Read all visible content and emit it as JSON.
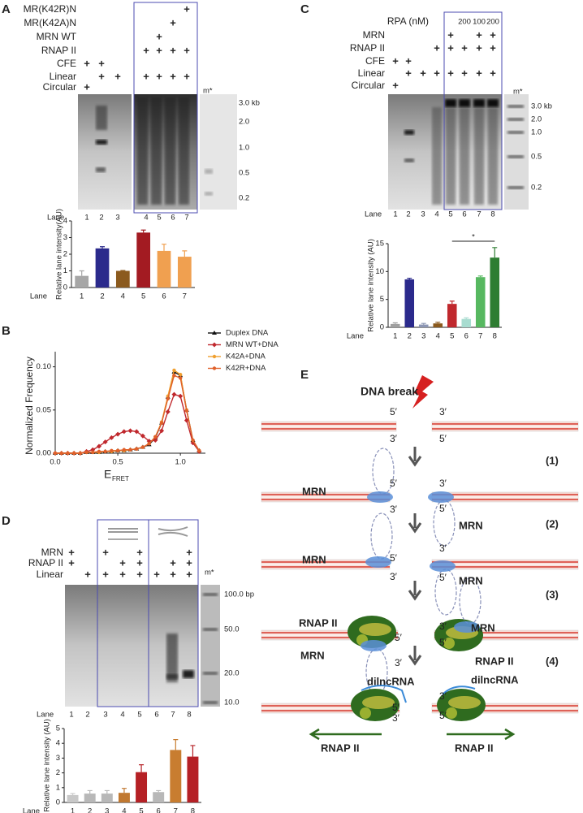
{
  "panels": {
    "a": "A",
    "b": "B",
    "c": "C",
    "d": "D",
    "e": "E"
  },
  "panel_a": {
    "rows": [
      {
        "label": "MR(K42R)N",
        "signs": [
          null,
          null,
          null,
          null,
          null,
          null,
          "+"
        ]
      },
      {
        "label": "MR(K42A)N",
        "signs": [
          null,
          null,
          null,
          null,
          null,
          "+",
          null
        ]
      },
      {
        "label": "MRN WT",
        "signs": [
          null,
          null,
          null,
          null,
          "+",
          null,
          null
        ]
      },
      {
        "label": "RNAP II",
        "signs": [
          null,
          null,
          null,
          "+",
          "+",
          "+",
          "+"
        ]
      },
      {
        "label": "CFE",
        "signs": [
          "+",
          "+",
          null,
          null,
          null,
          null,
          null
        ]
      },
      {
        "label": "Linear",
        "signs": [
          null,
          "+",
          "+",
          "+",
          "+",
          "+",
          "+"
        ]
      },
      {
        "label": "Circular",
        "signs": [
          "+",
          null,
          null,
          null,
          null,
          null,
          null
        ]
      }
    ],
    "marker_lane": "m*",
    "sizes": [
      "3.0 kb",
      "2.0",
      "1.0",
      "0.5",
      "0.2"
    ],
    "lane_label": "Lane",
    "lanes": [
      "1",
      "2",
      "3",
      "4",
      "5",
      "6",
      "7"
    ]
  },
  "panel_c": {
    "rpa_label": "RPA (nM)",
    "rpa": [
      null,
      null,
      null,
      null,
      null,
      "200",
      "100",
      "200"
    ],
    "rows": [
      {
        "label": "MRN",
        "signs": [
          null,
          null,
          null,
          null,
          "+",
          null,
          "+",
          "+"
        ]
      },
      {
        "label": "RNAP II",
        "signs": [
          null,
          null,
          null,
          "+",
          "+",
          "+",
          "+",
          "+"
        ]
      },
      {
        "label": "CFE",
        "signs": [
          "+",
          "+",
          null,
          null,
          null,
          null,
          null,
          null
        ]
      },
      {
        "label": "Linear",
        "signs": [
          null,
          "+",
          "+",
          "+",
          "+",
          "+",
          "+",
          "+"
        ]
      },
      {
        "label": "Circular",
        "signs": [
          "+",
          null,
          null,
          null,
          null,
          null,
          null,
          null
        ]
      }
    ],
    "marker_lane": "m*",
    "sizes": [
      "3.0 kb",
      "2.0",
      "1.0",
      "0.5",
      "0.2"
    ],
    "lane_label": "Lane",
    "lanes": [
      "1",
      "2",
      "3",
      "4",
      "5",
      "6",
      "7",
      "8"
    ]
  },
  "panel_d": {
    "rows": [
      {
        "label": "MRN",
        "signs": [
          "+",
          null,
          "+",
          null,
          "+",
          null,
          null,
          "+"
        ]
      },
      {
        "label": "RNAP II",
        "signs": [
          "+",
          null,
          null,
          "+",
          "+",
          null,
          "+",
          "+"
        ]
      },
      {
        "label": "Linear",
        "signs": [
          null,
          "+",
          "+",
          "+",
          "+",
          "+",
          "+",
          "+"
        ]
      }
    ],
    "marker_lane": "m*",
    "sizes": [
      "100.0 bp",
      "50.0",
      "20.0",
      "10.0"
    ],
    "lane_label": "Lane",
    "lanes": [
      "1",
      "2",
      "3",
      "4",
      "5",
      "6",
      "7",
      "8"
    ]
  },
  "panel_e": {
    "break_label": "DNA break",
    "five": "5′",
    "three": "3′",
    "mrn": "MRN",
    "rnap": "RNAP II",
    "rna": "dilncRNA",
    "steps": [
      "(1)",
      "(2)",
      "(3)",
      "(4)"
    ]
  },
  "chart_data": [
    {
      "type": "bar",
      "y_label": "Relative lane intensity(AU)",
      "x_label": "Lane",
      "categories": [
        "1",
        "2",
        "4",
        "5",
        "6",
        "7"
      ],
      "values": [
        0.7,
        2.35,
        1.0,
        3.3,
        2.2,
        1.85
      ],
      "errors": [
        0.3,
        0.1,
        0.02,
        0.15,
        0.4,
        0.35
      ],
      "colors": [
        "#a6a6a6",
        "#2b2a8c",
        "#8b5a1e",
        "#a31b22",
        "#f0a050",
        "#f0a050"
      ],
      "ylim": [
        0,
        4
      ],
      "yticks": [
        0,
        1,
        2,
        3,
        4
      ]
    },
    {
      "type": "line",
      "y_label": "Normalized Frequency",
      "x_label": "E",
      "x_label_sub": "FRET",
      "x": [
        0,
        0.05,
        0.1,
        0.15,
        0.2,
        0.25,
        0.3,
        0.35,
        0.4,
        0.45,
        0.5,
        0.55,
        0.6,
        0.65,
        0.7,
        0.75,
        0.8,
        0.85,
        0.9,
        0.95,
        1.0,
        1.05,
        1.1,
        1.15
      ],
      "series": [
        {
          "name": "Duplex DNA",
          "color": "#111111",
          "marker": "triangle",
          "values": [
            0,
            0,
            0,
            0,
            0,
            0.001,
            0.001,
            0.001,
            0.002,
            0.002,
            0.003,
            0.003,
            0.004,
            0.005,
            0.007,
            0.01,
            0.018,
            0.035,
            0.065,
            0.094,
            0.09,
            0.05,
            0.015,
            0.003
          ]
        },
        {
          "name": "MRN WT+DNA",
          "color": "#c0282d",
          "marker": "diamond",
          "values": [
            0,
            0,
            0,
            0,
            0,
            0.002,
            0.004,
            0.008,
            0.013,
            0.018,
            0.022,
            0.025,
            0.026,
            0.025,
            0.02,
            0.014,
            0.015,
            0.026,
            0.048,
            0.068,
            0.066,
            0.038,
            0.012,
            0.002
          ]
        },
        {
          "name": "K42A+DNA",
          "color": "#f0a030",
          "marker": "circle",
          "values": [
            0,
            0,
            0,
            0,
            0,
            0.001,
            0.001,
            0.001,
            0.002,
            0.002,
            0.003,
            0.003,
            0.004,
            0.005,
            0.007,
            0.011,
            0.019,
            0.036,
            0.066,
            0.096,
            0.091,
            0.05,
            0.015,
            0.003
          ]
        },
        {
          "name": "K42R+DNA",
          "color": "#e0602a",
          "marker": "circle",
          "values": [
            0,
            0,
            0,
            0,
            0,
            0.001,
            0.001,
            0.002,
            0.002,
            0.003,
            0.003,
            0.004,
            0.004,
            0.005,
            0.007,
            0.011,
            0.019,
            0.035,
            0.063,
            0.09,
            0.087,
            0.049,
            0.015,
            0.003
          ]
        }
      ],
      "xlim": [
        0,
        1.2
      ],
      "xticks": [
        {
          "value": 0,
          "label": "0.0"
        },
        0.5,
        {
          "value": 1,
          "label": "1.0"
        }
      ],
      "ylim": [
        0,
        0.11
      ],
      "yticks": [
        {
          "value": 0,
          "label": "0.00"
        },
        {
          "value": 0.05,
          "label": "0.05"
        },
        {
          "value": 0.1,
          "label": "0.10"
        }
      ],
      "legend": "upper right"
    },
    {
      "type": "bar",
      "y_label": "Relative lane intensity (AU)",
      "x_label": "Lane",
      "annotation": "*",
      "categories": [
        "1",
        "2",
        "3",
        "4",
        "5",
        "6",
        "7",
        "8"
      ],
      "values": [
        0.6,
        8.6,
        0.5,
        0.7,
        4.2,
        1.5,
        9.0,
        12.5
      ],
      "errors": [
        0.2,
        0.2,
        0.2,
        0.2,
        0.5,
        0.2,
        0.2,
        1.8
      ],
      "colors": [
        "#a0a0a0",
        "#2b2a8c",
        "#8c96b4",
        "#8b5a1e",
        "#c0282d",
        "#a8dcd0",
        "#57b860",
        "#2e7d32"
      ],
      "ylim": [
        0,
        15
      ],
      "yticks": [
        0,
        5,
        10,
        15
      ]
    },
    {
      "type": "bar",
      "y_label": "Relative lane intensity (AU)",
      "x_label": "Lane",
      "categories": [
        "1",
        "2",
        "3",
        "4",
        "5",
        "6",
        "7",
        "8"
      ],
      "values": [
        0.5,
        0.6,
        0.6,
        0.65,
        2.05,
        0.7,
        3.55,
        3.1
      ],
      "errors": [
        0.1,
        0.2,
        0.2,
        0.3,
        0.5,
        0.1,
        0.7,
        0.75
      ],
      "colors": [
        "#c8c8c8",
        "#b8b8b8",
        "#b8b8b8",
        "#c07830",
        "#b52025",
        "#b8b8b8",
        "#c87d30",
        "#b52025"
      ],
      "ylim": [
        0,
        5
      ],
      "yticks": [
        0,
        1,
        2,
        3,
        4,
        5
      ]
    }
  ]
}
